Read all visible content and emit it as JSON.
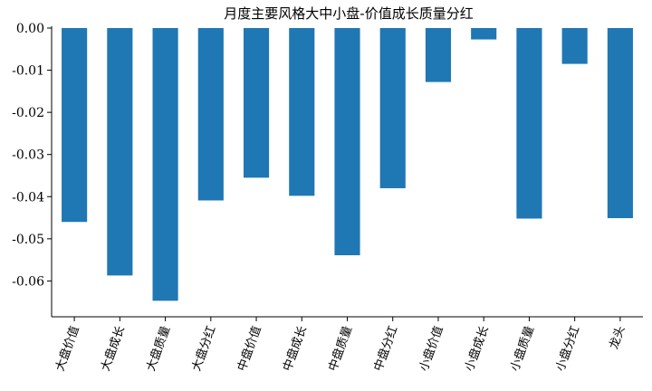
{
  "chart_data": {
    "type": "bar",
    "title": "月度主要风格大中小盘-价值成长质量分红",
    "categories": [
      "大盘价值",
      "大盘成长",
      "大盘质量",
      "大盘分红",
      "中盘价值",
      "中盘成长",
      "中盘质量",
      "中盘分红",
      "小盘价值",
      "小盘成长",
      "小盘质量",
      "小盘分红",
      "龙头"
    ],
    "values": [
      -0.046,
      -0.0587,
      -0.0647,
      -0.0409,
      -0.0355,
      -0.0398,
      -0.0539,
      -0.038,
      -0.0128,
      -0.0027,
      -0.0452,
      -0.0085,
      -0.0451
    ],
    "ylim": [
      -0.0685,
      0.0
    ],
    "yticks": [
      0.0,
      -0.01,
      -0.02,
      -0.03,
      -0.04,
      -0.05,
      -0.06
    ],
    "ytick_labels": [
      "0.00",
      "-0.01",
      "-0.02",
      "-0.03",
      "-0.04",
      "-0.05",
      "-0.06"
    ],
    "bar_color": "#1f77b4",
    "grid": false,
    "legend": "none"
  }
}
